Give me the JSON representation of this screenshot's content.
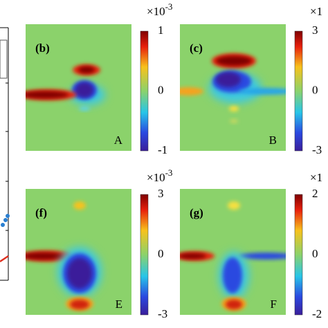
{
  "panels": [
    {
      "label": "(b)",
      "corner": "A",
      "exponent": "×10",
      "exponent_power": "-3",
      "ticks": [
        "1",
        "0",
        "-1"
      ]
    },
    {
      "label": "(c)",
      "corner": "B",
      "exponent": "×1",
      "ticks": [
        "3",
        "0",
        "-3"
      ]
    },
    {
      "label": "(f)",
      "corner": "E",
      "exponent": "×10",
      "exponent_power": "-3",
      "ticks": [
        "3",
        "0",
        "-3"
      ]
    },
    {
      "label": "(g)",
      "corner": "F",
      "exponent": "×1",
      "ticks": [
        "2",
        "0",
        "-2"
      ]
    }
  ]
}
